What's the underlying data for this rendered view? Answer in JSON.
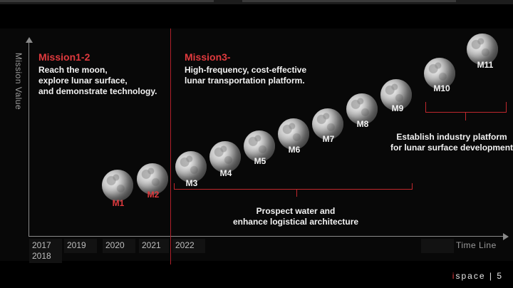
{
  "axis": {
    "y_title": "Mission Value",
    "x_title": "Time Line"
  },
  "phase1": {
    "heading": "Mission1-2",
    "lines": [
      "Reach the moon,",
      "explore lunar surface,",
      "and demonstrate technology."
    ]
  },
  "phase2": {
    "heading": "Mission3-",
    "lines": [
      "High-frequency, cost-effective",
      "lunar transportation platform."
    ]
  },
  "missions": [
    "M1",
    "M2",
    "M3",
    "M4",
    "M5",
    "M6",
    "M7",
    "M8",
    "M9",
    "M10",
    "M11"
  ],
  "brace_water": [
    "Prospect water and",
    "enhance logistical architecture"
  ],
  "brace_industry": [
    "Establish industry platform",
    "for lunar surface development"
  ],
  "years": {
    "y2017": "2017",
    "y2018": "2018",
    "y2019": "2019",
    "y2020": "2020",
    "y2021": "2021",
    "y2022": "2022"
  },
  "footer": {
    "dot": "i",
    "brand": "space",
    "sep": "|",
    "page": "5"
  },
  "colors": {
    "accent": "#e03a3e",
    "background": "#000000"
  }
}
